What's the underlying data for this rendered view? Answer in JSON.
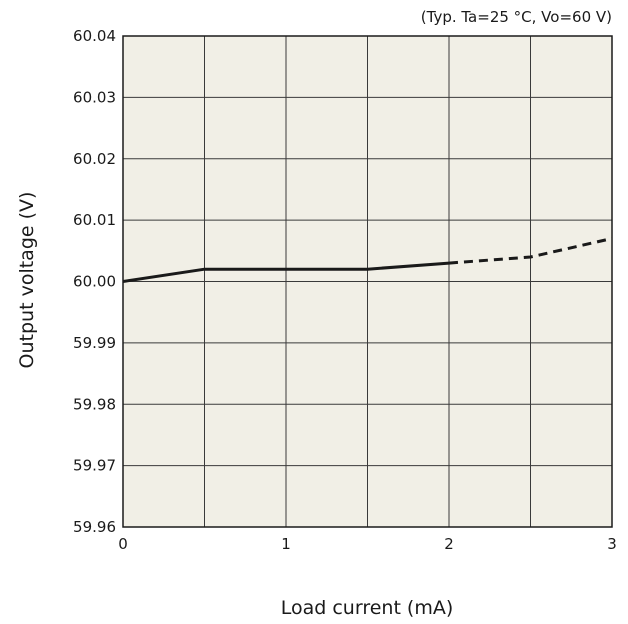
{
  "chart_data": {
    "type": "line",
    "title": "",
    "condition_note": "(Typ. Ta=25 °C, Vo=60 V)",
    "xlabel": "Load current (mA)",
    "ylabel": "Output voltage (V)",
    "xlim": [
      0,
      3
    ],
    "ylim": [
      59.96,
      60.04
    ],
    "x_ticks": [
      "0",
      "1",
      "2",
      "3"
    ],
    "y_ticks": [
      "60.04",
      "60.03",
      "60.02",
      "60.01",
      "60.00",
      "59.99",
      "59.98",
      "59.97",
      "59.96"
    ],
    "grid": true,
    "plot_background": "#f1efe6",
    "line_color": "#1a1a1a",
    "series": [
      {
        "style": "solid",
        "x": [
          0,
          0.5,
          1.0,
          1.5,
          2.0
        ],
        "y": [
          60.0,
          60.002,
          60.002,
          60.002,
          60.003
        ]
      },
      {
        "style": "dashed",
        "x": [
          2.0,
          2.5,
          3.0
        ],
        "y": [
          60.003,
          60.004,
          60.007
        ]
      }
    ]
  }
}
